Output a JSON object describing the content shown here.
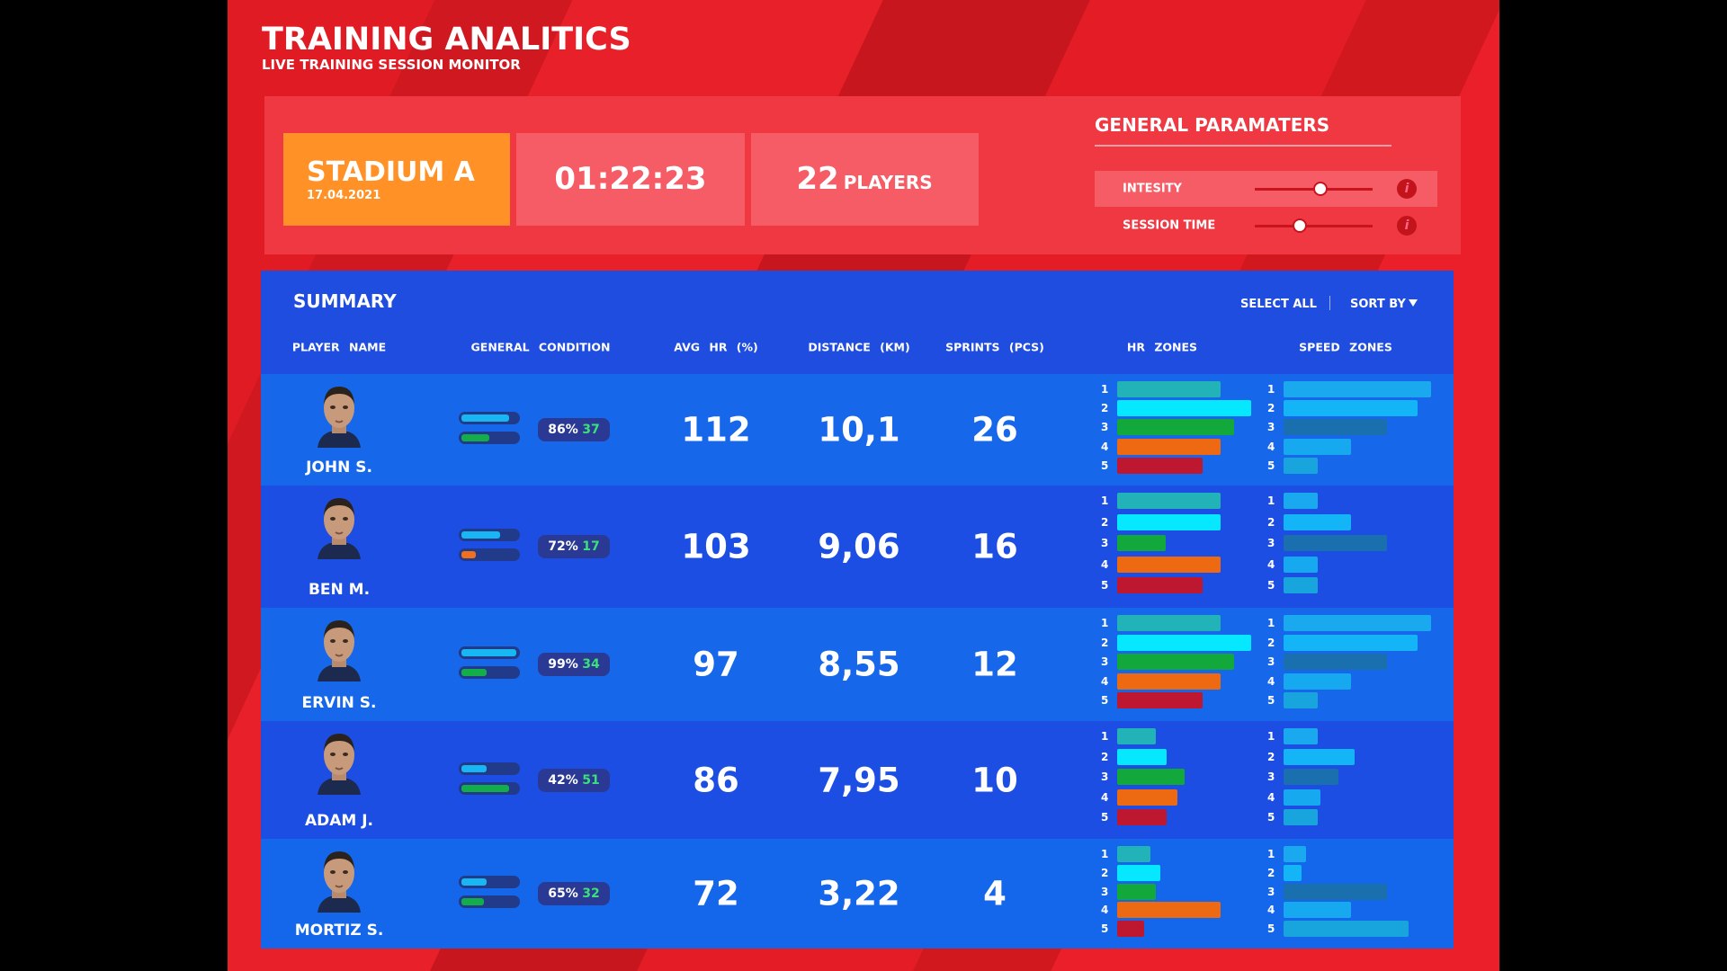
{
  "header": {
    "title": "TRAINING ANALITICS",
    "subtitle": "LIVE TRAINING SESSION MONITOR"
  },
  "session": {
    "venue": "STADIUM A",
    "date": "17.04.2021",
    "duration": "01:22:23",
    "players": 22,
    "players_label": "PLAYERS"
  },
  "parameters": {
    "title": "GENERAL PARAMATERS",
    "items": [
      {
        "label": "INTESITY",
        "value": 56
      },
      {
        "label": "SESSION TIME",
        "value": 38
      }
    ]
  },
  "summary": {
    "title": "SUMMARY",
    "actions": [
      "SELECT ALL",
      "SORT BY"
    ],
    "columns": [
      "PLAYER NAME",
      "GENERAL CONDITION",
      "AVG HR (%)",
      "DISTANCE (KM)",
      "SPRINTS (PCS)",
      "HR ZONES",
      "SPEED ZONES"
    ],
    "zone_labels": [
      1,
      2,
      3,
      4,
      5
    ],
    "hr_zone_colors": [
      "#22b3b8",
      "#05e8ff",
      "#12a83c",
      "#ee6a12",
      "#bd1830"
    ],
    "speed_zone_colors": [
      "#1aa9ee",
      "#13b5f7",
      "#1a6fae",
      "#17a9ef",
      "#18a4dd"
    ],
    "players": [
      {
        "name": "JOHN S.",
        "condition_bars": [
          {
            "value": 85,
            "color": "#18b6f2"
          },
          {
            "value": 50,
            "color": "#14ad4c"
          }
        ],
        "condition": "86%",
        "condition_delta": "37",
        "avg_hr": 112,
        "distance": "10,1",
        "sprints": 26,
        "hr_zones": [
          77,
          100,
          87,
          77,
          64
        ],
        "speed_zones": [
          100,
          91,
          70,
          46,
          23
        ]
      },
      {
        "name": "BEN M.",
        "condition_bars": [
          {
            "value": 70,
            "color": "#18b6f2"
          },
          {
            "value": 25,
            "color": "#f07020"
          }
        ],
        "condition": "72%",
        "condition_delta": "17",
        "avg_hr": 103,
        "distance": "9,06",
        "sprints": 16,
        "hr_zones": [
          77,
          77,
          36,
          77,
          64
        ],
        "speed_zones": [
          23,
          46,
          70,
          23,
          23
        ]
      },
      {
        "name": "ERVIN S.",
        "condition_bars": [
          {
            "value": 98,
            "color": "#18b6f2"
          },
          {
            "value": 45,
            "color": "#14ad4c"
          }
        ],
        "condition": "99%",
        "condition_delta": "34",
        "avg_hr": 97,
        "distance": "8,55",
        "sprints": 12,
        "hr_zones": [
          77,
          100,
          87,
          77,
          64
        ],
        "speed_zones": [
          100,
          91,
          70,
          46,
          23
        ]
      },
      {
        "name": "ADAM J.",
        "condition_bars": [
          {
            "value": 45,
            "color": "#18b6f2"
          },
          {
            "value": 85,
            "color": "#14ad4c"
          }
        ],
        "condition": "42%",
        "condition_delta": "51",
        "avg_hr": 86,
        "distance": "7,95",
        "sprints": 10,
        "hr_zones": [
          29,
          37,
          50,
          45,
          37
        ],
        "speed_zones": [
          23,
          48,
          37,
          25,
          23
        ]
      },
      {
        "name": "MORTIZ S.",
        "condition_bars": [
          {
            "value": 45,
            "color": "#18b6f2"
          },
          {
            "value": 40,
            "color": "#14ad4c"
          }
        ],
        "condition": "65%",
        "condition_delta": "32",
        "avg_hr": 72,
        "distance": "3,22",
        "sprints": 4,
        "hr_zones": [
          25,
          32,
          29,
          77,
          20
        ],
        "speed_zones": [
          15,
          12,
          70,
          46,
          85
        ]
      }
    ]
  }
}
